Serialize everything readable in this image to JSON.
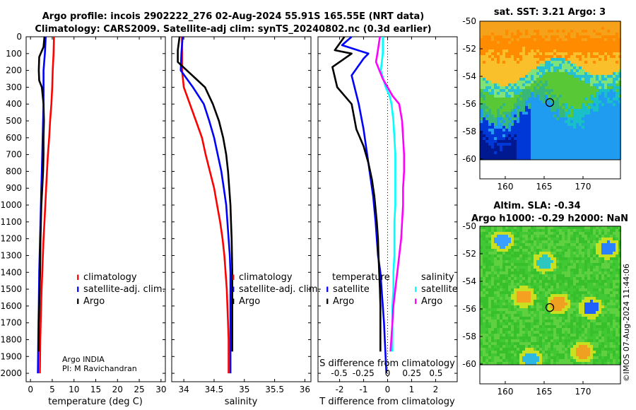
{
  "title": {
    "line1": "Argo profile: incois 2902222_276 02-Aug-2024 55.91S 165.55E (NRT data)",
    "line2": "Climatology: CARS2009. Satellite-adj clim: synTS_20240802.nc (0.3d earlier)"
  },
  "footer_text": "©IMOS 07-Aug-2024 11:44:06",
  "argo_info": {
    "line1": "Argo INDIA",
    "line2": "PI: M Ravichandran"
  },
  "colors": {
    "red": "#ff0000",
    "blue": "#0000ff",
    "black": "#000000",
    "cyan": "#00ffff",
    "magenta": "#ff00ff"
  },
  "chart_data": [
    {
      "id": "temperature",
      "type": "line",
      "xlabel": "temperature (deg C)",
      "xlim": [
        -1,
        31
      ],
      "xticks": [
        0,
        5,
        10,
        15,
        20,
        25,
        30
      ],
      "ylim": [
        2050,
        0
      ],
      "yticks": [
        0,
        100,
        200,
        300,
        400,
        500,
        600,
        700,
        800,
        900,
        1000,
        1100,
        1200,
        1300,
        1400,
        1500,
        1600,
        1700,
        1800,
        1900,
        2000
      ],
      "legend": [
        "climatology",
        "satellite-adj. clim.",
        "Argo"
      ],
      "series": [
        {
          "name": "climatology",
          "color": "red",
          "x": [
            5.4,
            5.3,
            5.1,
            5.0,
            4.8,
            4.5,
            4.3,
            4.0,
            3.8,
            3.6,
            3.4,
            3.2,
            3.0,
            2.85,
            2.7,
            2.55,
            2.45,
            2.35,
            2.25,
            2.2,
            2.15
          ],
          "y": [
            0,
            100,
            200,
            300,
            400,
            500,
            600,
            700,
            800,
            900,
            1000,
            1100,
            1200,
            1300,
            1400,
            1500,
            1600,
            1700,
            1800,
            1900,
            2000
          ]
        },
        {
          "name": "satellite-adj. clim.",
          "color": "blue",
          "x": [
            3.5,
            3.3,
            3.0,
            3.0,
            3.0,
            2.9,
            2.8,
            2.7,
            2.6,
            2.5,
            2.4,
            2.3,
            2.2,
            2.1,
            2.0,
            1.95,
            1.9,
            1.85,
            1.8,
            1.75,
            1.7
          ],
          "y": [
            0,
            100,
            200,
            300,
            400,
            500,
            600,
            700,
            800,
            900,
            1000,
            1100,
            1200,
            1300,
            1400,
            1500,
            1600,
            1700,
            1800,
            1900,
            2000
          ]
        },
        {
          "name": "Argo",
          "color": "black",
          "x": [
            3.2,
            3.0,
            2.0,
            1.9,
            2.0,
            2.6,
            3.0,
            3.1,
            3.0,
            3.0,
            2.9,
            2.7,
            2.5,
            2.4,
            2.3,
            2.2,
            2.1,
            2.0,
            1.9,
            1.85
          ],
          "y": [
            0,
            60,
            120,
            200,
            260,
            300,
            400,
            500,
            600,
            700,
            800,
            900,
            1000,
            1100,
            1200,
            1400,
            1500,
            1600,
            1700,
            1870
          ]
        }
      ]
    },
    {
      "id": "salinity",
      "type": "line",
      "xlabel": "salinity",
      "xlim": [
        33.8,
        36.1
      ],
      "xticks": [
        34,
        34.5,
        35,
        35.5,
        36
      ],
      "xticklabels": [
        "34",
        "34.5",
        "35",
        "35.5",
        "36"
      ],
      "ylim": [
        2050,
        0
      ],
      "legend": [
        "climatology",
        "satellite-adj. clim.",
        "Argo"
      ],
      "series": [
        {
          "name": "climatology",
          "color": "red",
          "x": [
            33.97,
            33.97,
            33.97,
            34.0,
            34.1,
            34.2,
            34.3,
            34.36,
            34.43,
            34.5,
            34.55,
            34.6,
            34.64,
            34.67,
            34.69,
            34.71,
            34.72,
            34.73,
            34.74,
            34.74,
            34.74
          ],
          "y": [
            0,
            100,
            200,
            300,
            400,
            500,
            600,
            700,
            800,
            900,
            1000,
            1100,
            1200,
            1300,
            1400,
            1500,
            1600,
            1700,
            1800,
            1900,
            2000
          ]
        },
        {
          "name": "satellite-adj. clim.",
          "color": "blue",
          "x": [
            33.98,
            33.96,
            33.95,
            34.15,
            34.33,
            34.42,
            34.5,
            34.56,
            34.62,
            34.66,
            34.7,
            34.72,
            34.74,
            34.76,
            34.77,
            34.77,
            34.77,
            34.77,
            34.77,
            34.77,
            34.77
          ],
          "y": [
            0,
            100,
            200,
            300,
            400,
            500,
            600,
            700,
            800,
            900,
            1000,
            1100,
            1200,
            1300,
            1400,
            1500,
            1600,
            1700,
            1800,
            1900,
            2000
          ]
        },
        {
          "name": "Argo",
          "color": "black",
          "x": [
            33.93,
            33.9,
            33.9,
            34.05,
            34.2,
            34.35,
            34.48,
            34.58,
            34.65,
            34.7,
            34.73,
            34.75,
            34.77,
            34.78,
            34.79,
            34.8,
            34.8,
            34.8,
            34.8,
            34.8
          ],
          "y": [
            0,
            80,
            150,
            200,
            250,
            300,
            400,
            500,
            600,
            700,
            800,
            900,
            1000,
            1100,
            1200,
            1400,
            1500,
            1600,
            1700,
            1870
          ]
        }
      ]
    },
    {
      "id": "difference",
      "type": "line",
      "xlabel": "T difference from climatology",
      "xlabel2": "S difference from climatology",
      "xlim": [
        -2.9,
        2.9
      ],
      "xticks": [
        -2,
        -1,
        0,
        1,
        2
      ],
      "xticklabels": [
        "-2",
        "-1",
        "0",
        "1",
        "2"
      ],
      "sticks": [
        -0.5,
        -0.25,
        0,
        0.25,
        0.5
      ],
      "sticklabels": [
        "-0.5",
        "-0.25",
        "0",
        "0.25",
        "0.5"
      ],
      "ylim": [
        2050,
        0
      ],
      "legend_temperature_title": "temperature",
      "legend_salinity_title": "salinity",
      "legend_temperature": [
        "satellite",
        "Argo"
      ],
      "legend_salinity": [
        "satellite",
        "Argo"
      ],
      "series": [
        {
          "name": "T satellite",
          "color": "blue",
          "x": [
            -1.5,
            -1.9,
            -0.8,
            -1.0,
            -1.5,
            -1.2,
            -1.0,
            -0.9,
            -0.8,
            -0.7,
            -0.6,
            -0.5,
            -0.45,
            -0.4,
            -0.3,
            -0.25,
            -0.2,
            -0.15,
            -0.1,
            -0.05
          ],
          "y": [
            0,
            50,
            100,
            130,
            230,
            400,
            550,
            650,
            750,
            850,
            950,
            1100,
            1200,
            1300,
            1400,
            1500,
            1600,
            1700,
            1850,
            2000
          ]
        },
        {
          "name": "T Argo",
          "color": "black",
          "x": [
            -1.8,
            -2.2,
            -1.5,
            -2.3,
            -2.1,
            -1.5,
            -1.3,
            -1.0,
            -0.8,
            -0.65,
            -0.55,
            -0.45,
            -0.4,
            -0.38,
            -0.35,
            -0.32,
            -0.3,
            -0.3,
            -0.3
          ],
          "y": [
            0,
            80,
            100,
            180,
            300,
            400,
            550,
            650,
            750,
            850,
            950,
            1100,
            1200,
            1300,
            1400,
            1500,
            1600,
            1700,
            1870
          ]
        },
        {
          "name": "S satellite",
          "color": "cyan",
          "x": [
            -0.05,
            -0.05,
            -0.07,
            -0.02,
            0.02,
            0.04,
            0.06,
            0.07,
            0.08,
            0.08,
            0.08,
            0.08,
            0.07,
            0.07,
            0.07,
            0.06,
            0.06,
            0.05,
            0.05,
            0.05
          ],
          "y": [
            0,
            100,
            200,
            300,
            350,
            400,
            500,
            600,
            700,
            800,
            900,
            1000,
            1100,
            1200,
            1300,
            1400,
            1500,
            1600,
            1700,
            1870
          ]
        },
        {
          "name": "S Argo",
          "color": "magenta",
          "x": [
            -0.08,
            -0.1,
            -0.12,
            -0.05,
            0.05,
            0.12,
            0.15,
            0.16,
            0.17,
            0.17,
            0.16,
            0.16,
            0.15,
            0.14,
            0.12,
            0.1,
            0.08,
            0.06,
            0.05,
            0.03
          ],
          "y": [
            0,
            80,
            150,
            250,
            350,
            400,
            500,
            600,
            700,
            800,
            900,
            1000,
            1100,
            1200,
            1300,
            1400,
            1500,
            1600,
            1700,
            1870
          ]
        }
      ]
    }
  ],
  "maps": {
    "sst": {
      "title": "sat. SST: 3.21 Argo: 3",
      "lat_ticks": [
        "-50",
        "-52",
        "-54",
        "-56",
        "-58",
        "-60"
      ],
      "lon_ticks": [
        "160",
        "165",
        "170"
      ]
    },
    "sla": {
      "title1": "Altim. SLA: -0.34",
      "title2": "Argo h1000: -0.29 h2000: NaN",
      "lat_ticks": [
        "-50",
        "-52",
        "-54",
        "-56",
        "-58",
        "-60"
      ],
      "lon_ticks": [
        "160",
        "165",
        "170"
      ]
    }
  }
}
